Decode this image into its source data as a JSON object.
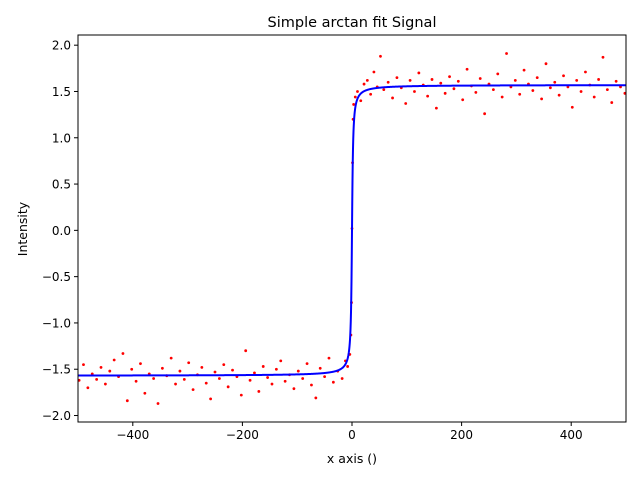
{
  "chart_data": {
    "type": "scatter",
    "title": "Simple arctan fit Signal",
    "xlabel": "x axis ()",
    "ylabel": "Intensity",
    "xlim": [
      -500,
      500
    ],
    "ylim": [
      -2.07,
      2.11
    ],
    "xticks": [
      -400,
      -200,
      0,
      200,
      400
    ],
    "xtick_labels": [
      "−400",
      "−200",
      "0",
      "200",
      "400"
    ],
    "yticks": [
      -2.0,
      -1.5,
      -1.0,
      -0.5,
      0.0,
      0.5,
      1.0,
      1.5,
      2.0
    ],
    "ytick_labels": [
      "−2.0",
      "−1.5",
      "−1.0",
      "−0.5",
      "0.0",
      "0.5",
      "1.0",
      "1.5",
      "2.0"
    ],
    "grid": false,
    "legend": "none",
    "series": [
      {
        "kind": "scatter",
        "color": "#ff0000",
        "points": [
          [
            -498,
            -1.62
          ],
          [
            -490,
            -1.45
          ],
          [
            -482,
            -1.7
          ],
          [
            -474,
            -1.55
          ],
          [
            -466,
            -1.61
          ],
          [
            -458,
            -1.48
          ],
          [
            -450,
            -1.66
          ],
          [
            -442,
            -1.52
          ],
          [
            -434,
            -1.4
          ],
          [
            -426,
            -1.58
          ],
          [
            -418,
            -1.33
          ],
          [
            -410,
            -1.84
          ],
          [
            -402,
            -1.5
          ],
          [
            -394,
            -1.63
          ],
          [
            -386,
            -1.44
          ],
          [
            -378,
            -1.76
          ],
          [
            -370,
            -1.55
          ],
          [
            -362,
            -1.6
          ],
          [
            -354,
            -1.87
          ],
          [
            -346,
            -1.49
          ],
          [
            -338,
            -1.57
          ],
          [
            -330,
            -1.38
          ],
          [
            -322,
            -1.66
          ],
          [
            -314,
            -1.52
          ],
          [
            -306,
            -1.61
          ],
          [
            -298,
            -1.43
          ],
          [
            -290,
            -1.72
          ],
          [
            -282,
            -1.56
          ],
          [
            -274,
            -1.48
          ],
          [
            -266,
            -1.65
          ],
          [
            -258,
            -1.82
          ],
          [
            -250,
            -1.53
          ],
          [
            -242,
            -1.6
          ],
          [
            -234,
            -1.45
          ],
          [
            -226,
            -1.69
          ],
          [
            -218,
            -1.51
          ],
          [
            -210,
            -1.58
          ],
          [
            -202,
            -1.78
          ],
          [
            -194,
            -1.3
          ],
          [
            -186,
            -1.62
          ],
          [
            -178,
            -1.54
          ],
          [
            -170,
            -1.74
          ],
          [
            -162,
            -1.47
          ],
          [
            -154,
            -1.59
          ],
          [
            -146,
            -1.66
          ],
          [
            -138,
            -1.5
          ],
          [
            -130,
            -1.41
          ],
          [
            -122,
            -1.63
          ],
          [
            -114,
            -1.56
          ],
          [
            -106,
            -1.71
          ],
          [
            -98,
            -1.52
          ],
          [
            -90,
            -1.6
          ],
          [
            -82,
            -1.44
          ],
          [
            -74,
            -1.67
          ],
          [
            -66,
            -1.81
          ],
          [
            -58,
            -1.49
          ],
          [
            -50,
            -1.58
          ],
          [
            -42,
            -1.38
          ],
          [
            -34,
            -1.64
          ],
          [
            -26,
            -1.52
          ],
          [
            -18,
            -1.6
          ],
          [
            -12,
            -1.41
          ],
          [
            -8,
            -1.47
          ],
          [
            -4,
            -1.34
          ],
          [
            -2,
            -1.13
          ],
          [
            -1,
            -0.78
          ],
          [
            0,
            0.02
          ],
          [
            1,
            0.73
          ],
          [
            2,
            1.2
          ],
          [
            3,
            1.36
          ],
          [
            6,
            1.44
          ],
          [
            10,
            1.5
          ],
          [
            16,
            1.4
          ],
          [
            22,
            1.58
          ],
          [
            28,
            1.62
          ],
          [
            34,
            1.47
          ],
          [
            40,
            1.71
          ],
          [
            46,
            1.55
          ],
          [
            52,
            1.88
          ],
          [
            58,
            1.52
          ],
          [
            66,
            1.6
          ],
          [
            74,
            1.43
          ],
          [
            82,
            1.65
          ],
          [
            90,
            1.54
          ],
          [
            98,
            1.37
          ],
          [
            106,
            1.62
          ],
          [
            114,
            1.5
          ],
          [
            122,
            1.7
          ],
          [
            130,
            1.57
          ],
          [
            138,
            1.45
          ],
          [
            146,
            1.63
          ],
          [
            154,
            1.32
          ],
          [
            162,
            1.59
          ],
          [
            170,
            1.48
          ],
          [
            178,
            1.66
          ],
          [
            186,
            1.53
          ],
          [
            194,
            1.61
          ],
          [
            202,
            1.41
          ],
          [
            210,
            1.74
          ],
          [
            218,
            1.56
          ],
          [
            226,
            1.49
          ],
          [
            234,
            1.64
          ],
          [
            242,
            1.26
          ],
          [
            250,
            1.58
          ],
          [
            258,
            1.52
          ],
          [
            266,
            1.69
          ],
          [
            274,
            1.44
          ],
          [
            282,
            1.91
          ],
          [
            290,
            1.55
          ],
          [
            298,
            1.62
          ],
          [
            306,
            1.47
          ],
          [
            314,
            1.73
          ],
          [
            322,
            1.58
          ],
          [
            330,
            1.51
          ],
          [
            338,
            1.65
          ],
          [
            346,
            1.42
          ],
          [
            354,
            1.8
          ],
          [
            362,
            1.54
          ],
          [
            370,
            1.6
          ],
          [
            378,
            1.46
          ],
          [
            386,
            1.67
          ],
          [
            394,
            1.55
          ],
          [
            402,
            1.33
          ],
          [
            410,
            1.62
          ],
          [
            418,
            1.5
          ],
          [
            426,
            1.71
          ],
          [
            434,
            1.57
          ],
          [
            442,
            1.44
          ],
          [
            450,
            1.63
          ],
          [
            458,
            1.87
          ],
          [
            466,
            1.52
          ],
          [
            474,
            1.38
          ],
          [
            482,
            1.61
          ],
          [
            490,
            1.55
          ],
          [
            498,
            1.48
          ]
        ]
      },
      {
        "kind": "line",
        "color": "#0000ff",
        "function": "arctan",
        "amplitude": 1.0,
        "scale": 1.5
      }
    ]
  }
}
